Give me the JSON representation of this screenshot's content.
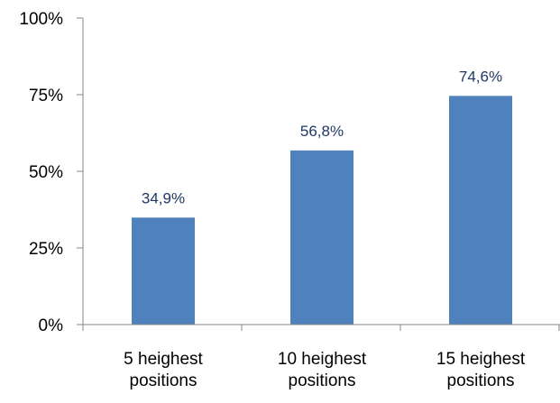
{
  "chart_data": {
    "type": "bar",
    "categories": [
      [
        "5 heighest",
        "positions"
      ],
      [
        "10 heighest",
        "positions"
      ],
      [
        "15 heighest",
        "positions"
      ]
    ],
    "values": [
      34.9,
      56.8,
      74.6
    ],
    "data_labels": [
      "34,9%",
      "56,8%",
      "74,6%"
    ],
    "y_ticks": [
      0,
      25,
      50,
      75,
      100
    ],
    "y_tick_labels": [
      "0%",
      "25%",
      "50%",
      "75%",
      "100%"
    ],
    "ylim": [
      0,
      100
    ],
    "grid": false,
    "legend": "none",
    "colors": {
      "bar": "#4f81bd",
      "axis": "#868686",
      "text": "#000000",
      "data_label": "#1f3864"
    }
  }
}
